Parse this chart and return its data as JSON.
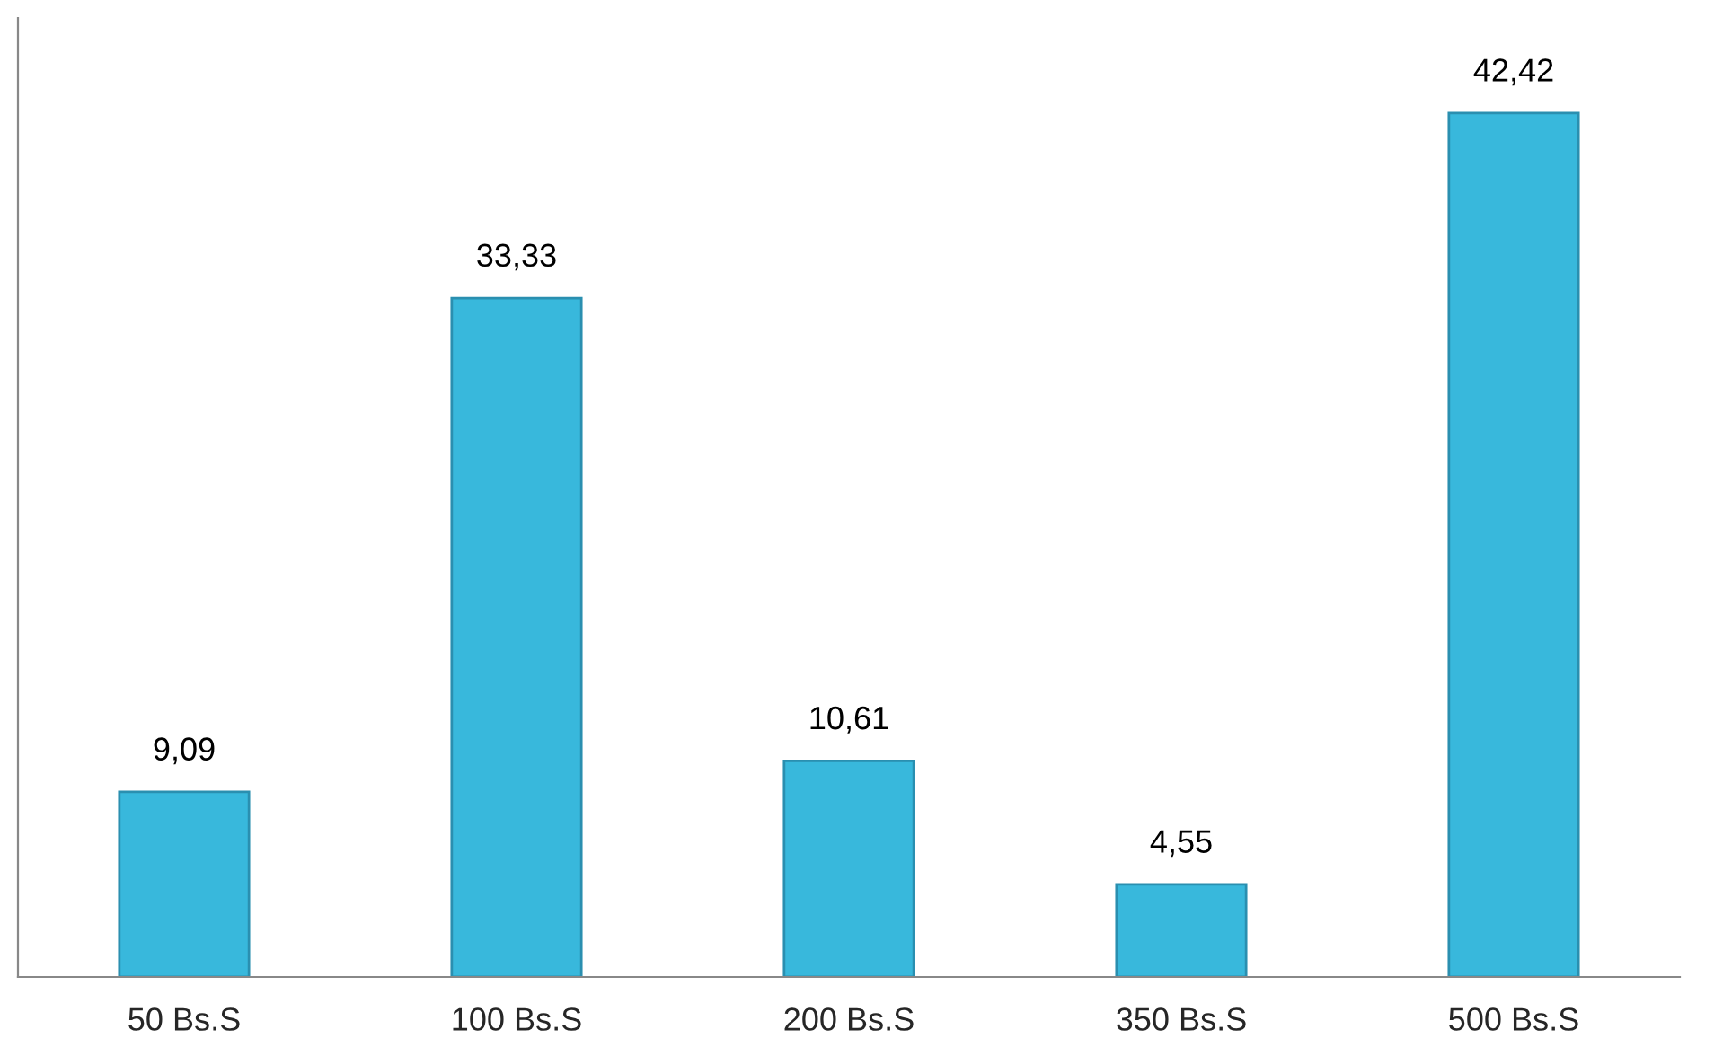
{
  "chart_data": {
    "type": "bar",
    "categories": [
      "50 Bs.S",
      "100 Bs.S",
      "200 Bs.S",
      "350 Bs.S",
      "500 Bs.S"
    ],
    "values": [
      9.09,
      33.33,
      10.61,
      4.55,
      42.42
    ],
    "value_labels": [
      "9,09",
      "33,33",
      "10,61",
      "4,55",
      "42,42"
    ],
    "color": "#38b8dc",
    "grid": false,
    "legend": false,
    "tick_labels": "x"
  }
}
